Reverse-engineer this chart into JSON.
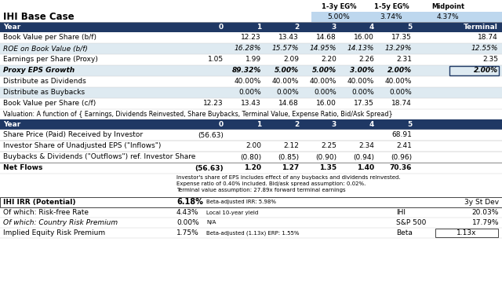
{
  "title": "IHI Base Case",
  "header_labels": [
    "1-3y EG%",
    "1-5y EG%",
    "Midpoint"
  ],
  "header_values": [
    "5.00%",
    "3.74%",
    "4.37%"
  ],
  "table1_header": [
    "Year",
    "0",
    "1",
    "2",
    "3",
    "4",
    "5",
    "Terminal"
  ],
  "table1_rows": [
    [
      "Book Value per Share (b/f)",
      "",
      "12.23",
      "13.43",
      "14.68",
      "16.00",
      "17.35",
      "18.74"
    ],
    [
      "ROE on Book Value (b/f)",
      "",
      "16.28%",
      "15.57%",
      "14.95%",
      "14.13%",
      "13.29%",
      "12.55%"
    ],
    [
      "Earnings per Share (Proxy)",
      "1.05",
      "1.99",
      "2.09",
      "2.20",
      "2.26",
      "2.31",
      "2.35"
    ],
    [
      "Proxy EPS Growth",
      "",
      "89.32%",
      "5.00%",
      "5.00%",
      "3.00%",
      "2.00%",
      "2.00%"
    ],
    [
      "Distribute as Dividends",
      "",
      "40.00%",
      "40.00%",
      "40.00%",
      "40.00%",
      "40.00%",
      ""
    ],
    [
      "Distribute as Buybacks",
      "",
      "0.00%",
      "0.00%",
      "0.00%",
      "0.00%",
      "0.00%",
      ""
    ],
    [
      "Book Value per Share (c/f)",
      "12.23",
      "13.43",
      "14.68",
      "16.00",
      "17.35",
      "18.74",
      ""
    ]
  ],
  "table1_italic_rows": [
    1,
    3
  ],
  "valuation_text": "Valuation: A function of { Earnings, Dividends Reinvested, Share Buybacks, Terminal Value, Expense Ratio, Bid/Ask Spread}",
  "table2_header": [
    "Year",
    "0",
    "1",
    "2",
    "3",
    "4",
    "5"
  ],
  "table2_rows": [
    [
      "Share Price (Paid) Received by Investor",
      "(56.63)",
      "",
      "",
      "",
      "",
      "68.91"
    ],
    [
      "Investor Share of Unadjusted EPS (\"Inflows\")",
      "",
      "2.00",
      "2.12",
      "2.25",
      "2.34",
      "2.41"
    ],
    [
      "Buybacks & Dividends (\"Outflows\") ref. Investor Share",
      "",
      "(0.80)",
      "(0.85)",
      "(0.90)",
      "(0.94)",
      "(0.96)"
    ],
    [
      "Net Flows",
      "(56.63)",
      "1.20",
      "1.27",
      "1.35",
      "1.40",
      "70.36"
    ]
  ],
  "note1": "Investor's share of EPS includes effect of any buybacks and dividends reinvested.",
  "note2": "Expense ratio of 0.40% included. Bid/ask spread assumption: 0.02%.",
  "note3": "Terminal value assumption: 27.89x forward terminal earnings",
  "irr_label": "IHI IRR (Potential)",
  "irr_value": "6.18%",
  "irr_note": "Beta-adjusted IRR: 5.98%",
  "irr_right": "3y St Dev",
  "rows_bottom": [
    [
      "Of which: Risk-free Rate",
      "4.43%",
      "Local 10-year yield",
      "IHI",
      "20.03%"
    ],
    [
      "Of which: Country Risk Premium",
      "0.00%",
      "N/A",
      "S&P 500",
      "17.79%"
    ],
    [
      "Implied Equity Risk Premium",
      "1.75%",
      "Beta-adjusted (1.13x) ERP: 1.55%",
      "Beta",
      "1.13x"
    ]
  ],
  "dark_blue": "#1F3864",
  "light_blue_bg": "#BDD7EE",
  "white": "#FFFFFF",
  "black": "#000000",
  "very_light_blue": "#DEEAF1",
  "mid_blue_bg": "#D6E4F0"
}
